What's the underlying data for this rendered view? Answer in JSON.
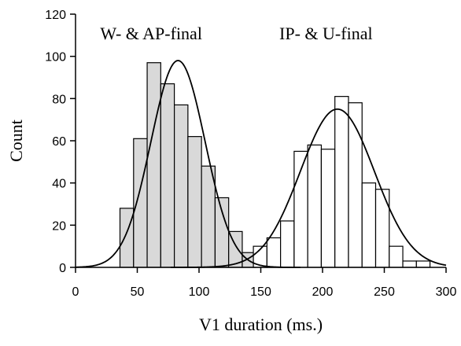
{
  "chart_data": {
    "type": "bar",
    "title": "",
    "xlabel": "V1 duration (ms.)",
    "ylabel": "Count",
    "xlim": [
      0,
      300
    ],
    "ylim": [
      0,
      120
    ],
    "xticks": [
      0,
      50,
      100,
      150,
      200,
      250,
      300
    ],
    "yticks": [
      0,
      20,
      40,
      60,
      80,
      100,
      120
    ],
    "grid": false,
    "bin_width": 11,
    "annotations": [
      {
        "text": "W- & AP-final",
        "x": 20,
        "y": 108
      },
      {
        "text": "IP- & U-final",
        "x": 165,
        "y": 108
      }
    ],
    "series": [
      {
        "fill": "#d9d9d9",
        "bins": [
          {
            "x": 36,
            "value": 28
          },
          {
            "x": 47,
            "value": 61
          },
          {
            "x": 58,
            "value": 97
          },
          {
            "x": 69,
            "value": 87
          },
          {
            "x": 80,
            "value": 77
          },
          {
            "x": 91,
            "value": 62
          },
          {
            "x": 102,
            "value": 48
          },
          {
            "x": 113,
            "value": 33
          },
          {
            "x": 124,
            "value": 17
          },
          {
            "x": 135,
            "value": 7
          }
        ],
        "fit_curve": {
          "type": "normal",
          "mean": 83,
          "sd": 22,
          "peak": 98
        }
      },
      {
        "fill": "#ffffff",
        "bins": [
          {
            "x": 144,
            "value": 10
          },
          {
            "x": 155,
            "value": 14
          },
          {
            "x": 166,
            "value": 22
          },
          {
            "x": 177,
            "value": 55
          },
          {
            "x": 188,
            "value": 58
          },
          {
            "x": 199,
            "value": 56
          },
          {
            "x": 210,
            "value": 81
          },
          {
            "x": 221,
            "value": 78
          },
          {
            "x": 232,
            "value": 40
          },
          {
            "x": 243,
            "value": 37
          },
          {
            "x": 254,
            "value": 10
          },
          {
            "x": 265,
            "value": 3
          },
          {
            "x": 276,
            "value": 3
          }
        ],
        "fit_curve": {
          "type": "normal",
          "mean": 212,
          "sd": 30,
          "peak": 75
        }
      }
    ]
  }
}
